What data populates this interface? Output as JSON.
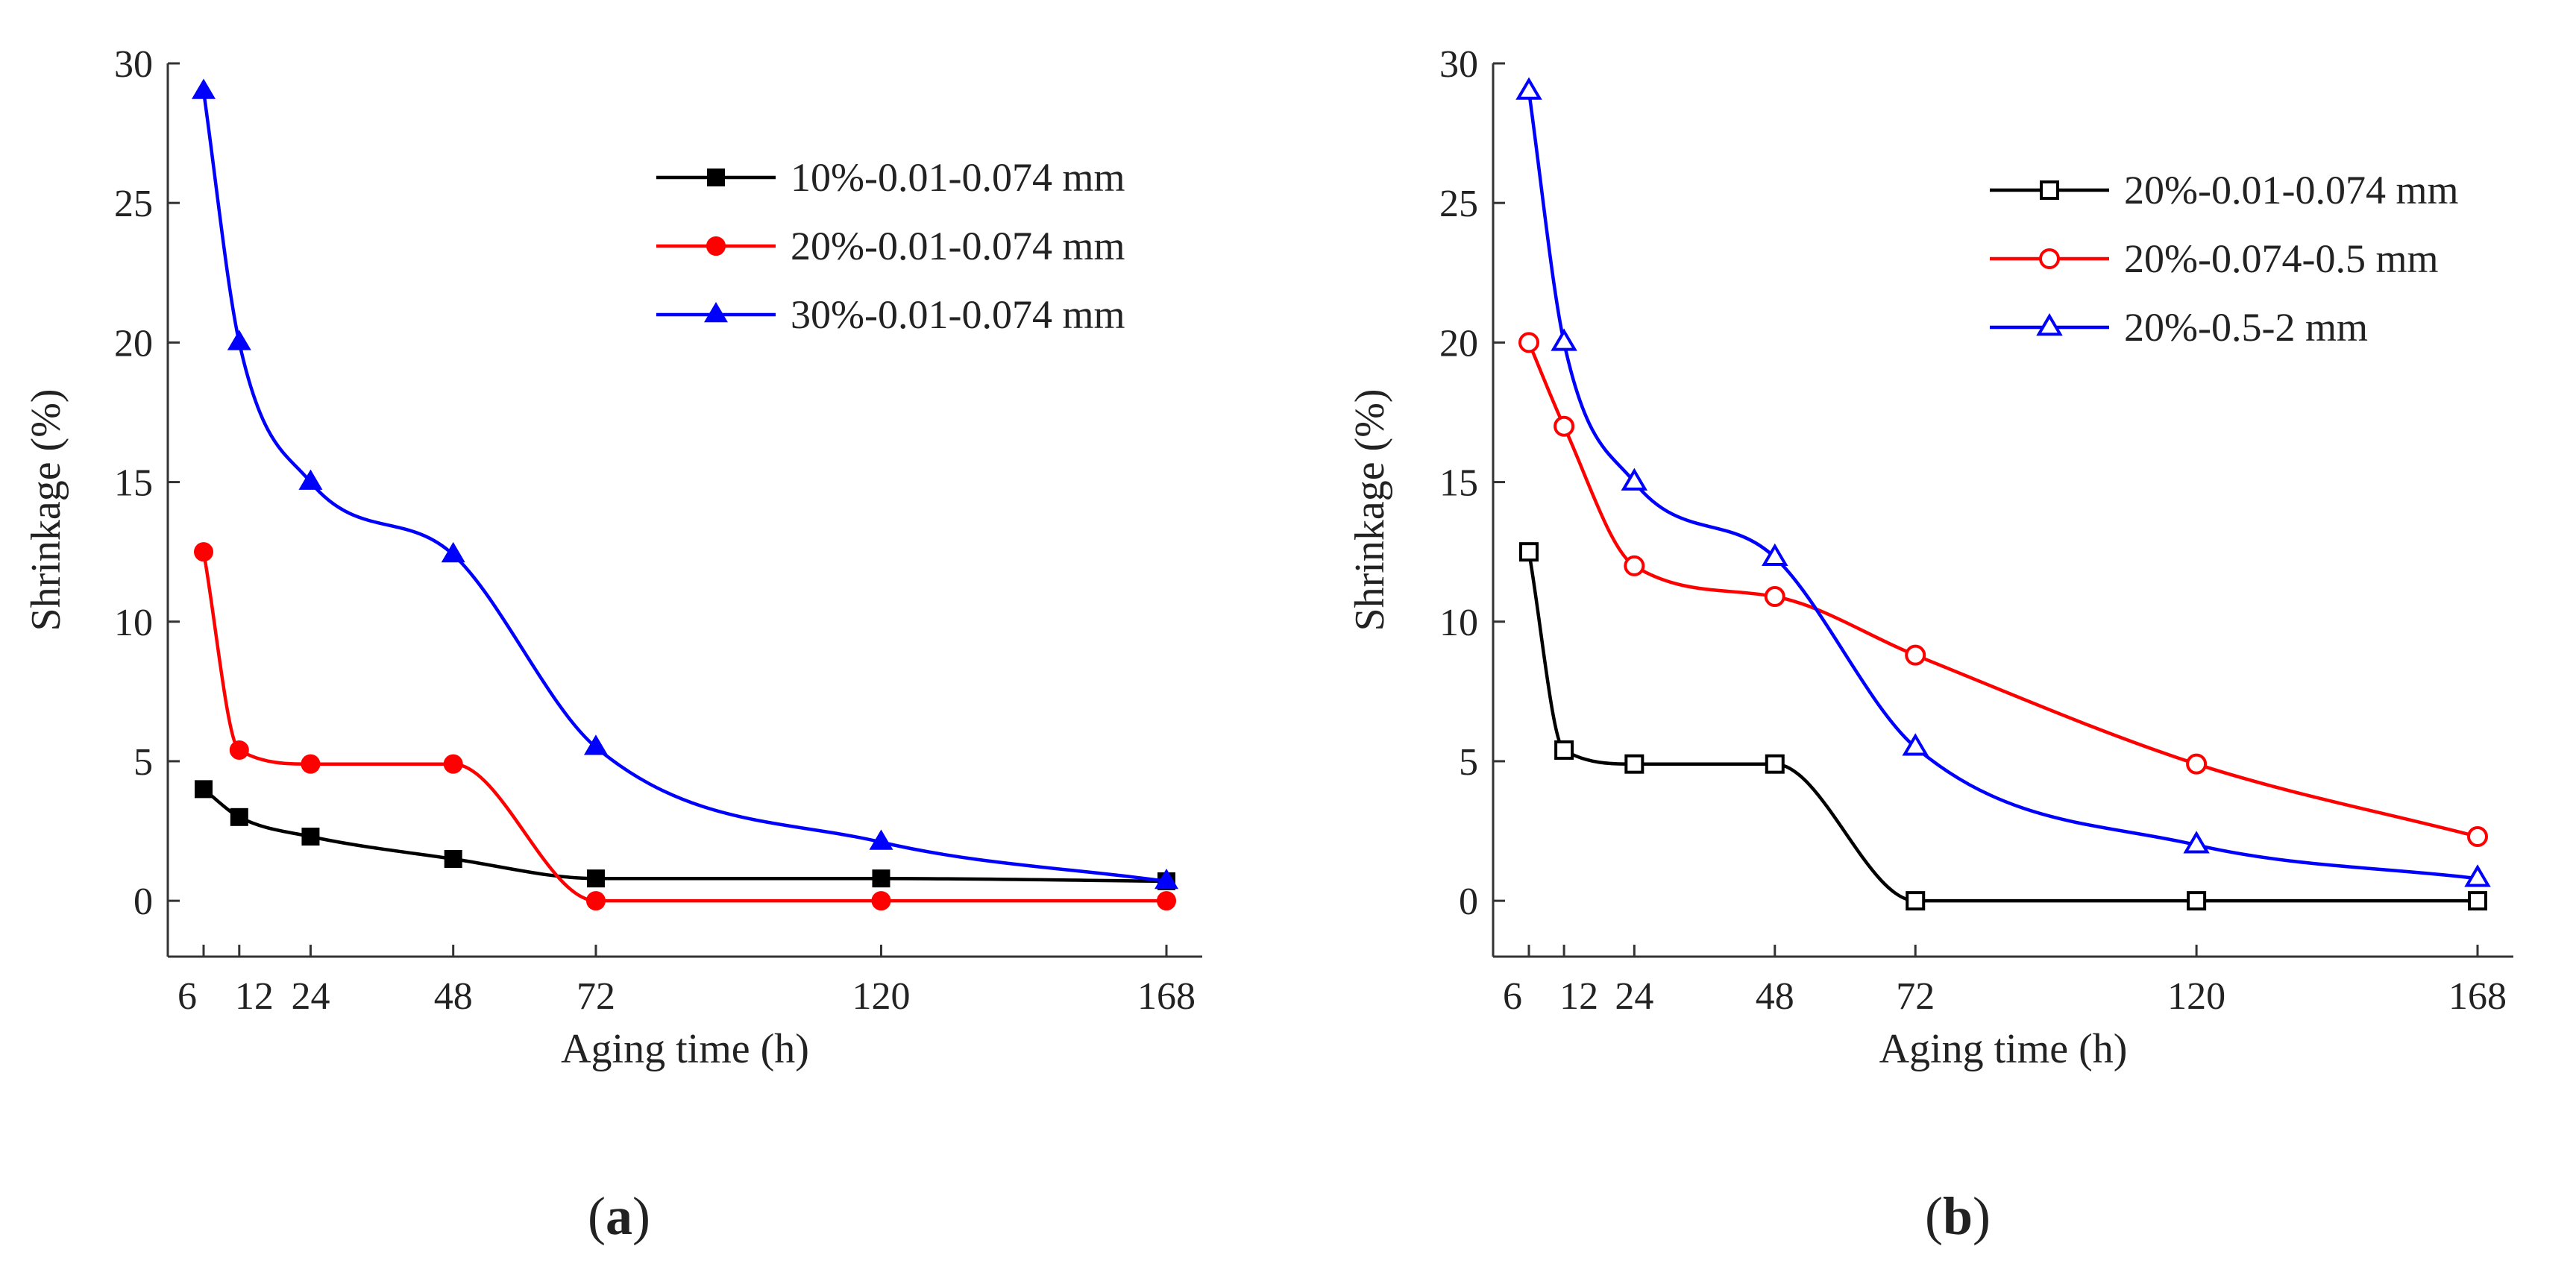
{
  "panel_labels": [
    "a",
    "b"
  ],
  "chart_data": [
    {
      "type": "line",
      "panel": "a",
      "xlabel": "Aging time (h)",
      "ylabel": "Shrinkage (%)",
      "xlim": [
        6,
        168
      ],
      "ylim": [
        -2,
        30
      ],
      "x": [
        6,
        12,
        24,
        48,
        72,
        120,
        168
      ],
      "xticks": [
        "6",
        "12",
        "24",
        "48",
        "72",
        "120",
        "168"
      ],
      "yticks": [
        0,
        5,
        10,
        15,
        20,
        25,
        30
      ],
      "legend_position": "top-right",
      "series": [
        {
          "name": "10%-0.01-0.074 mm",
          "color": "#000000",
          "marker": "square-filled",
          "values": [
            4.0,
            3.0,
            2.3,
            1.5,
            0.8,
            0.8,
            0.7
          ]
        },
        {
          "name": "20%-0.01-0.074 mm",
          "color": "#ff0000",
          "marker": "circle-filled",
          "values": [
            12.5,
            5.4,
            4.9,
            4.9,
            0.0,
            0.0,
            0.0
          ]
        },
        {
          "name": "30%-0.01-0.074 mm",
          "color": "#0000ff",
          "marker": "triangle-filled",
          "values": [
            29.0,
            20.0,
            15.0,
            12.4,
            5.5,
            2.1,
            0.7
          ]
        }
      ]
    },
    {
      "type": "line",
      "panel": "b",
      "xlabel": "Aging time (h)",
      "ylabel": "Shrinkage (%)",
      "xlim": [
        6,
        168
      ],
      "ylim": [
        -2,
        30
      ],
      "x": [
        6,
        12,
        24,
        48,
        72,
        120,
        168
      ],
      "xticks": [
        "6",
        "12",
        "24",
        "48",
        "72",
        "120",
        "168"
      ],
      "yticks": [
        0,
        5,
        10,
        15,
        20,
        25,
        30
      ],
      "legend_position": "top-right",
      "series": [
        {
          "name": "20%-0.01-0.074 mm",
          "color": "#000000",
          "marker": "square-open",
          "values": [
            12.5,
            5.4,
            4.9,
            4.9,
            0.0,
            0.0,
            0.0
          ]
        },
        {
          "name": "20%-0.074-0.5 mm",
          "color": "#ff0000",
          "marker": "circle-open",
          "values": [
            20.0,
            17.0,
            12.0,
            10.9,
            8.8,
            4.9,
            2.3
          ]
        },
        {
          "name": "20%-0.5-2 mm",
          "color": "#0000ff",
          "marker": "triangle-open",
          "values": [
            29.0,
            20.0,
            15.0,
            12.3,
            5.5,
            2.0,
            0.8
          ]
        }
      ]
    }
  ]
}
